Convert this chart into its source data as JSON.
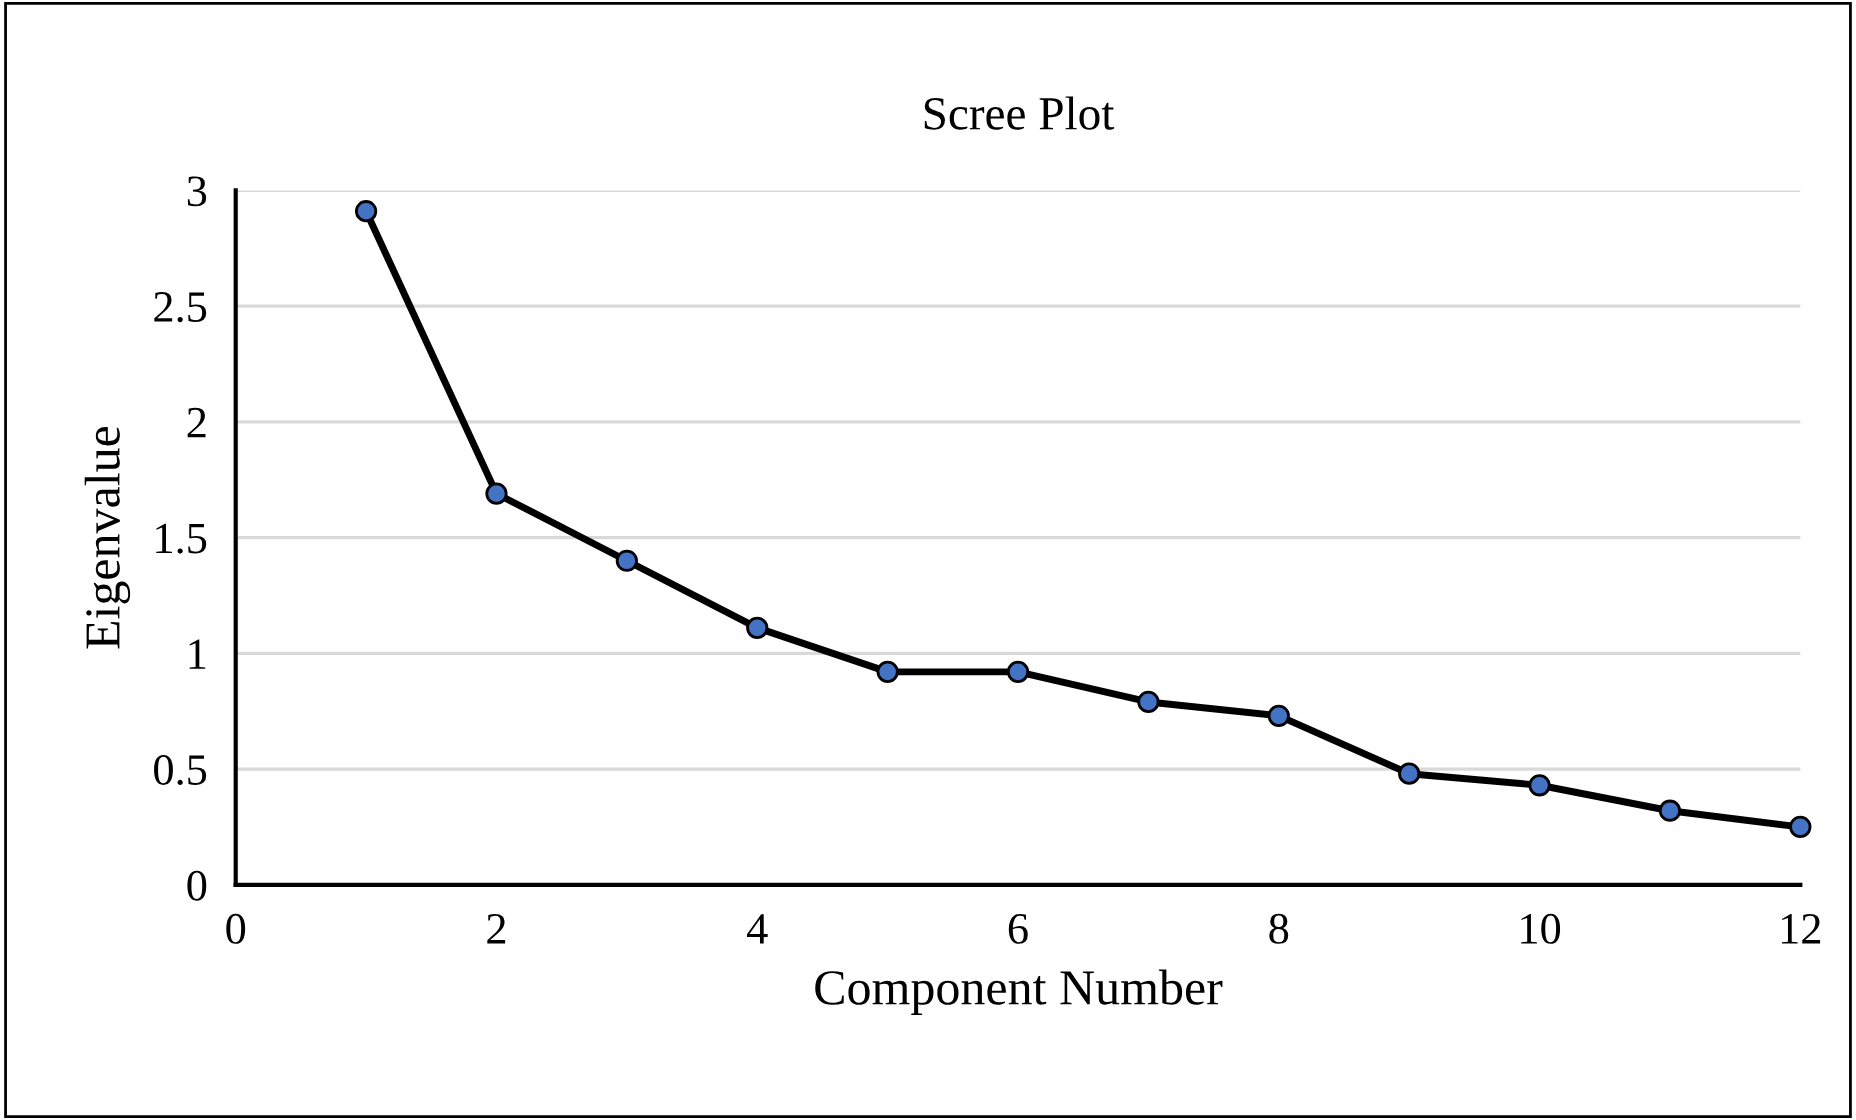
{
  "chart_data": {
    "type": "line",
    "title": "Scree Plot",
    "xlabel": "Component Number",
    "ylabel": "Eigenvalue",
    "x": [
      1,
      2,
      3,
      4,
      5,
      6,
      7,
      8,
      9,
      10,
      11,
      12
    ],
    "series": [
      {
        "color": "#4472c4",
        "values": [
          2.91,
          1.69,
          1.4,
          1.11,
          0.92,
          0.92,
          0.79,
          0.73,
          0.48,
          0.43,
          0.32,
          0.25
        ]
      }
    ],
    "marker": "circle",
    "line_style": "solid",
    "xlim": [
      0,
      12
    ],
    "xticks": [
      0,
      2,
      4,
      6,
      8,
      10,
      12
    ],
    "ylim": [
      0,
      3
    ],
    "yticks": [
      0,
      0.5,
      1,
      1.5,
      2,
      2.5,
      3
    ],
    "grid": "y",
    "legend": false
  }
}
